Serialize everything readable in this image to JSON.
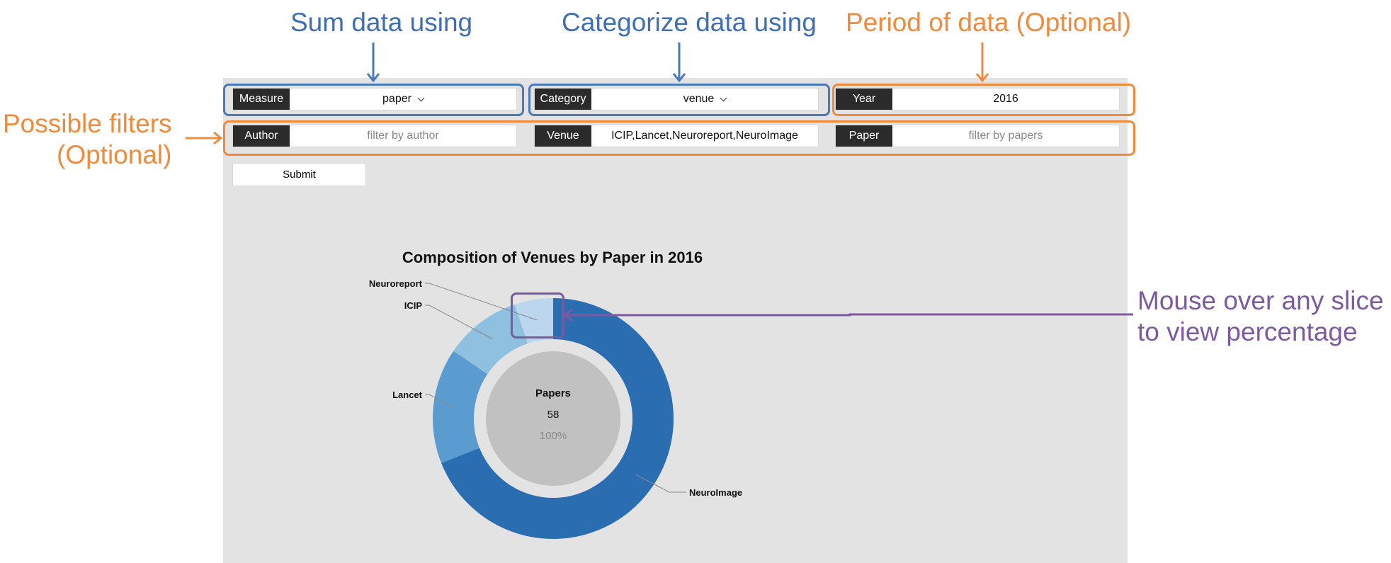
{
  "annotations": {
    "sum_data": "Sum data using",
    "categorize_data": "Categorize data using",
    "period_data": "Period of data (Optional)",
    "possible_filters_line1": "Possible filters",
    "possible_filters_line2": "(Optional)",
    "mouse_over_line1": "Mouse over any slice",
    "mouse_over_line2": "to view percentage"
  },
  "controls": {
    "measure": {
      "label": "Measure",
      "value": "paper"
    },
    "category": {
      "label": "Category",
      "value": "venue"
    },
    "year": {
      "label": "Year",
      "value": "2016"
    },
    "author": {
      "label": "Author",
      "placeholder": "filter by author"
    },
    "venue": {
      "label": "Venue",
      "value": "ICIP,Lancet,Neuroreport,NeuroImage"
    },
    "paper": {
      "label": "Paper",
      "placeholder": "filter by papers"
    },
    "submit_label": "Submit"
  },
  "chart_data": {
    "type": "pie",
    "title": "Composition of Venues by Paper in 2016",
    "center": {
      "label": "Papers",
      "value": "58",
      "percent": "100%"
    },
    "categories": [
      "NeuroImage",
      "Lancet",
      "ICIP",
      "Neuroreport"
    ],
    "values": [
      40,
      9,
      6,
      3
    ],
    "colors": [
      "#2a6db0",
      "#5a9ccf",
      "#8fc0e0",
      "#bcd6ee"
    ]
  },
  "colors": {
    "annotation_blue": "#3f6fb2",
    "annotation_orange": "#f08a3c",
    "annotation_purple": "#7d5aa0",
    "panel_background": "#e3e3e3"
  }
}
